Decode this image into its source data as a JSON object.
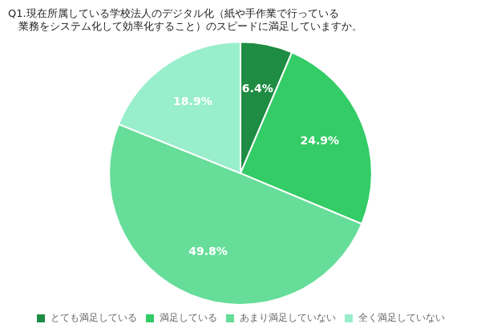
{
  "chart_data": {
    "type": "pie",
    "title": "Q1.現在所属している学校法人のデジタル化（紙や手作業で行っている",
    "subtitle": "　業務をシステム化して効率化すること）のスピードに満足していますか。",
    "categories": [
      "とても満足している",
      "満足している",
      "あまり満足していない",
      "全く満足していない"
    ],
    "values": [
      6.4,
      24.9,
      49.8,
      18.9
    ],
    "value_labels": [
      "6.4%",
      "24.9%",
      "49.8%",
      "18.9%"
    ],
    "colors": [
      "#1e8c42",
      "#33cc66",
      "#66dd99",
      "#99eecc"
    ],
    "data_labels": true,
    "legend": "bottom"
  }
}
